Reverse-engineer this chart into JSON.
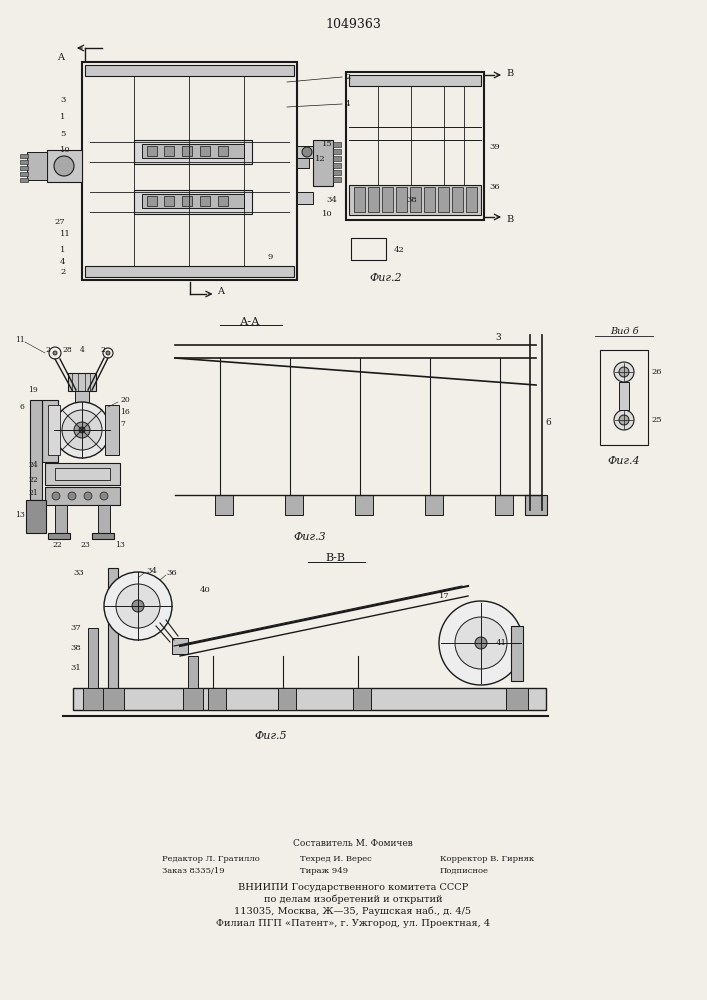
{
  "title": "1049363",
  "bg_color": "#f2efe9",
  "line_color": "#1a1a1a",
  "fig2_caption": "Фиг.2",
  "fig3_caption": "Фиг.3",
  "fig4_caption": "Вид б",
  "fig4_subcaption": "Фиг.4",
  "fig5_caption": "Фиг.5",
  "footer_composer": "Составитель М. Фомичев",
  "footer_editor": "Редактор Л. Гратилло",
  "footer_tech": "Техред И. Верес",
  "footer_corrector": "Корректор В. Гирняк",
  "footer_order": "Заказ 8335/19",
  "footer_tirazh": "Тираж 949",
  "footer_podpisnoe": "Подписное",
  "footer_vniipи": "ВНИИПИ Государственного комитета СССР",
  "footer_dela": "по делам изобретений и открытий",
  "footer_addr": "113035, Москва, Ж—35, Раушская наб., д. 4/5",
  "footer_filial": "Филиал ПГП «Патент», г. Ужгород, ул. Проектная, 4"
}
